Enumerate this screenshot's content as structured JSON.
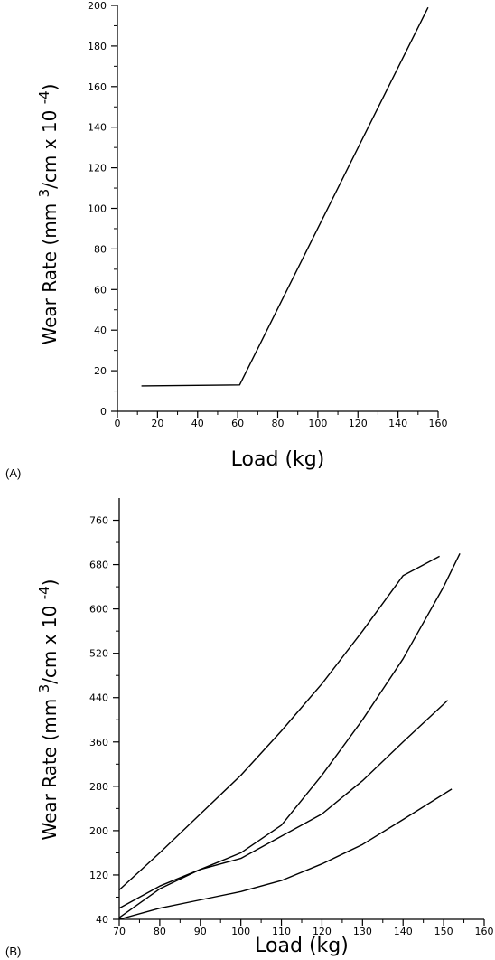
{
  "chart_data": [
    {
      "panel": "(A)",
      "type": "line",
      "xlabel": "Load (kg)",
      "ylabel": "Wear Rate (mm 3/cm x 10-4)",
      "ylabel_parts": {
        "pre": "Wear Rate (mm",
        "sup1": "3",
        "mid": "/cm x 10",
        "sup2": "-4",
        "post": ")"
      },
      "xlim": [
        0,
        160
      ],
      "ylim": [
        0,
        200
      ],
      "xticks": [
        0,
        20,
        40,
        60,
        80,
        100,
        120,
        140,
        160
      ],
      "yticks": [
        0,
        20,
        40,
        60,
        80,
        100,
        120,
        140,
        160,
        180,
        200
      ],
      "grid": false,
      "series": [
        {
          "x": [
            12,
            61,
            155
          ],
          "y": [
            12.5,
            13,
            199
          ]
        }
      ]
    },
    {
      "panel": "(B)",
      "type": "line",
      "xlabel": "Load (kg)",
      "ylabel": "Wear Rate (mm 3/cm x 10-4)",
      "ylabel_parts": {
        "pre": "Wear Rate (mm",
        "sup1": "3",
        "mid": "/cm x 10",
        "sup2": "-4",
        "post": ")"
      },
      "xlim": [
        70,
        160
      ],
      "ylim": [
        40,
        800
      ],
      "xticks": [
        70,
        80,
        90,
        100,
        110,
        120,
        130,
        140,
        150,
        160
      ],
      "yticks": [
        40,
        120,
        200,
        280,
        360,
        440,
        520,
        600,
        680,
        760
      ],
      "grid": false,
      "series": [
        {
          "x": [
            70,
            80,
            90,
            100,
            110,
            120,
            130,
            140,
            149
          ],
          "y": [
            93,
            160,
            230,
            300,
            380,
            465,
            560,
            660,
            695
          ]
        },
        {
          "x": [
            70,
            80,
            90,
            100,
            110,
            120,
            130,
            140,
            150,
            154
          ],
          "y": [
            43,
            95,
            130,
            160,
            210,
            300,
            400,
            510,
            640,
            700
          ]
        },
        {
          "x": [
            70,
            80,
            90,
            100,
            110,
            120,
            130,
            140,
            151
          ],
          "y": [
            60,
            100,
            130,
            150,
            190,
            230,
            290,
            360,
            435
          ]
        },
        {
          "x": [
            70,
            80,
            90,
            100,
            110,
            120,
            130,
            140,
            152
          ],
          "y": [
            40,
            60,
            75,
            90,
            110,
            140,
            175,
            220,
            275
          ]
        }
      ]
    }
  ]
}
